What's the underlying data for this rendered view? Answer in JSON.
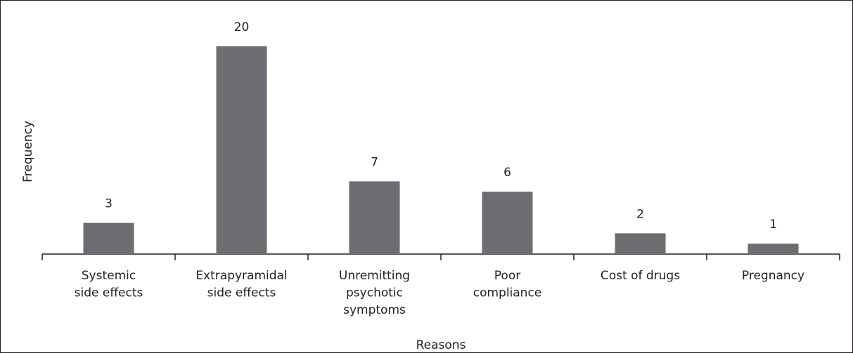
{
  "chart_data": {
    "type": "bar",
    "categories": [
      "Systemic\nside effects",
      "Extrapyramidal\nside effects",
      "Unremitting\npsychotic\nsymptoms",
      "Poor\ncompliance",
      "Cost of drugs",
      "Pregnancy"
    ],
    "values": [
      3,
      20,
      7,
      6,
      2,
      1
    ],
    "color": "#6d6e71",
    "ylim": [
      0,
      20
    ],
    "xlabel": "Reasons",
    "ylabel": "Frequency"
  }
}
